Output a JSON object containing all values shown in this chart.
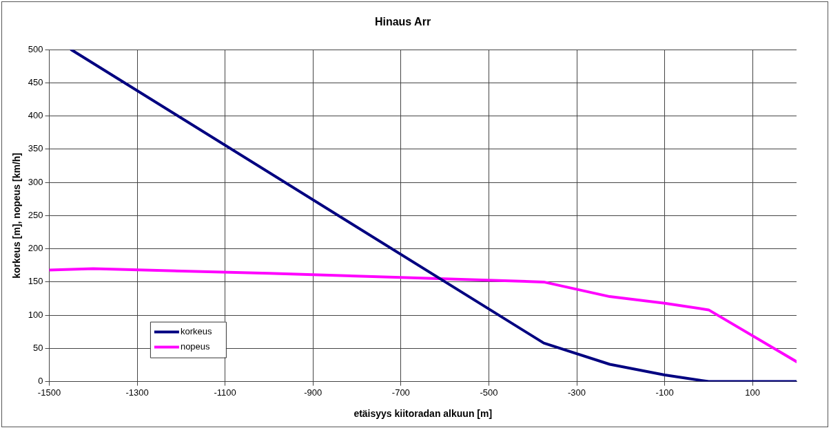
{
  "chart_data": {
    "type": "line",
    "title": "Hinaus Arr",
    "xlabel": "etäisyys kiitoradan alkuun [m]",
    "ylabel": "korkeus [m], nopeus [km/h]",
    "xlim": [
      -1500,
      200
    ],
    "xticks": [
      -1500,
      -1300,
      -1100,
      -900,
      -700,
      -500,
      -300,
      -100,
      100
    ],
    "ylim": [
      0,
      500
    ],
    "yticks": [
      0,
      50,
      100,
      150,
      200,
      250,
      300,
      350,
      400,
      450,
      500
    ],
    "grid": true,
    "legend": "bottom left",
    "marker": "none",
    "line_style": "solid",
    "series": [
      {
        "name": "korkeus",
        "color": "#000080",
        "x": [
          -1450,
          -375,
          -225,
          -100,
          0,
          200
        ],
        "values": [
          500,
          58,
          26,
          10,
          0,
          0
        ]
      },
      {
        "name": "nopeus",
        "color": "#ff00ff",
        "x": [
          -1500,
          -1400,
          -1000,
          -700,
          -375,
          -225,
          -100,
          0,
          200
        ],
        "values": [
          168,
          170,
          163,
          157,
          150,
          128,
          118,
          108,
          30
        ]
      }
    ]
  }
}
